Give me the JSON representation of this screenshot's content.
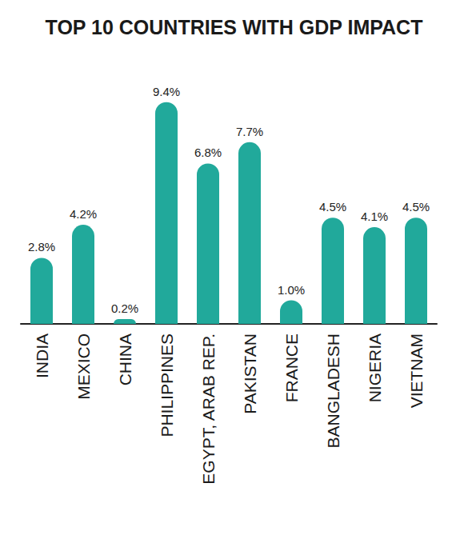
{
  "chart_data": {
    "type": "bar",
    "title": "TOP 10 COUNTRIES WITH GDP IMPACT",
    "categories": [
      "INDIA",
      "MEXICO",
      "CHINA",
      "PHILIPPINES",
      "EGYPT, ARAB REP.",
      "PAKISTAN",
      "FRANCE",
      "BANGLADESH",
      "NIGERIA",
      "VIETNAM"
    ],
    "values": [
      2.8,
      4.2,
      0.2,
      9.4,
      6.8,
      7.7,
      1.0,
      4.5,
      4.1,
      4.5
    ],
    "value_labels": [
      "2.8%",
      "4.2%",
      "0.2%",
      "9.4%",
      "6.8%",
      "7.7%",
      "1.0%",
      "4.5%",
      "4.1%",
      "4.5%"
    ],
    "color": "#21a99b",
    "ylim": [
      0,
      10
    ],
    "grid": false,
    "data_labels": true,
    "tick_labels": "x"
  }
}
